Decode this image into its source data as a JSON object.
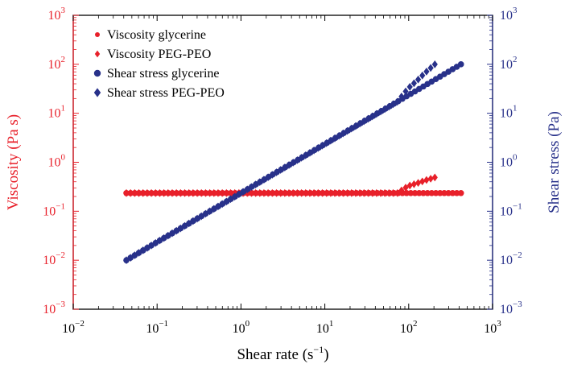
{
  "chart_data": {
    "type": "scatter",
    "scale": "log-log",
    "title": "",
    "xlabel": "Shear rate",
    "xlabel_unit": "(s",
    "xlabel_unit_exp": "−1",
    "xlabel_unit_close": ")",
    "ylabel_left": "Viscosity (Pa s)",
    "ylabel_right": "Shear stress (Pa)",
    "xlim": [
      0.01,
      1000
    ],
    "ylim_left": [
      0.001,
      1000
    ],
    "ylim_right": [
      0.001,
      1000
    ],
    "x_ticks": [
      {
        "base": "10",
        "exp": "−2"
      },
      {
        "base": "10",
        "exp": "−1"
      },
      {
        "base": "10",
        "exp": "0"
      },
      {
        "base": "10",
        "exp": "1"
      },
      {
        "base": "10",
        "exp": "2"
      },
      {
        "base": "10",
        "exp": "3"
      }
    ],
    "y_ticks_left": [
      {
        "base": "10",
        "exp": "−3"
      },
      {
        "base": "10",
        "exp": "−2"
      },
      {
        "base": "10",
        "exp": "−1"
      },
      {
        "base": "10",
        "exp": "0"
      },
      {
        "base": "10",
        "exp": "1"
      },
      {
        "base": "10",
        "exp": "2"
      },
      {
        "base": "10",
        "exp": "3"
      }
    ],
    "y_ticks_right": [
      {
        "base": "10",
        "exp": "−3"
      },
      {
        "base": "10",
        "exp": "−2"
      },
      {
        "base": "10",
        "exp": "−1"
      },
      {
        "base": "10",
        "exp": "0"
      },
      {
        "base": "10",
        "exp": "1"
      },
      {
        "base": "10",
        "exp": "2"
      },
      {
        "base": "10",
        "exp": "3"
      }
    ],
    "grid": false,
    "legend_position": "top-left",
    "colors": {
      "left_axis": "#e8202a",
      "right_axis": "#28318a",
      "viscosity": "#e8202a",
      "stress": "#28318a"
    },
    "series": [
      {
        "name": "Viscosity glycerine",
        "axis": "left",
        "marker": "circle",
        "color": "#e8202a",
        "x": [
          0.043,
          0.1,
          1,
          10,
          100,
          420
        ],
        "y": [
          0.235,
          0.235,
          0.235,
          0.235,
          0.235,
          0.235
        ]
      },
      {
        "name": "Viscosity PEG-PEO",
        "axis": "left",
        "marker": "diamond",
        "color": "#e8202a",
        "x": [
          0.043,
          0.1,
          1,
          10,
          75,
          85,
          100,
          130,
          160,
          205
        ],
        "y": [
          0.235,
          0.235,
          0.235,
          0.235,
          0.235,
          0.28,
          0.33,
          0.38,
          0.43,
          0.49
        ]
      },
      {
        "name": "Shear stress glycerine",
        "axis": "right",
        "marker": "circle",
        "color": "#28318a",
        "x": [
          0.043,
          0.1,
          1,
          10,
          100,
          420
        ],
        "y": [
          0.01,
          0.0235,
          0.235,
          2.35,
          23.5,
          100
        ]
      },
      {
        "name": "Shear stress PEG-PEO",
        "axis": "right",
        "marker": "diamond",
        "color": "#28318a",
        "x": [
          0.043,
          0.1,
          1,
          10,
          75,
          85,
          100,
          130,
          160,
          205
        ],
        "y": [
          0.01,
          0.0235,
          0.235,
          2.35,
          17.6,
          24,
          33,
          49,
          69,
          100
        ]
      }
    ]
  }
}
